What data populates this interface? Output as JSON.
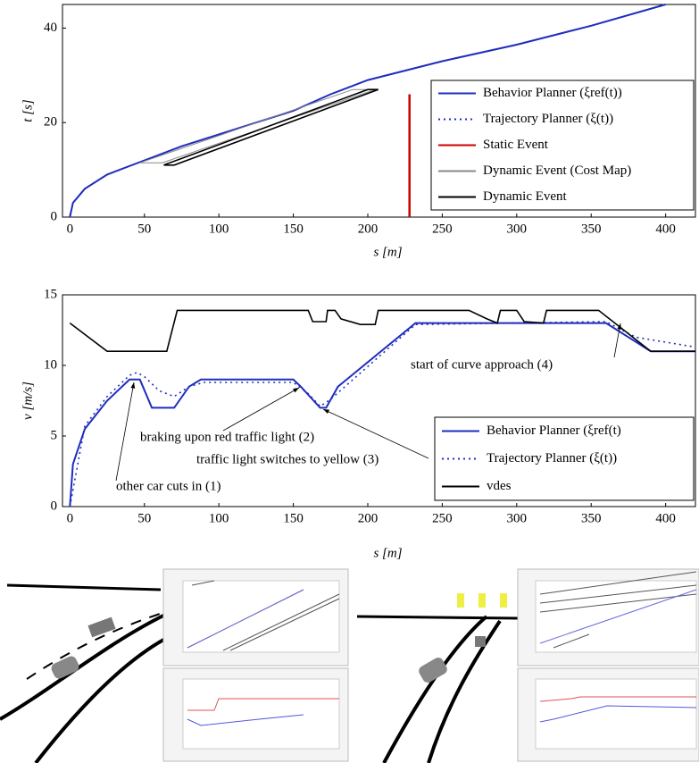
{
  "chart_data": [
    {
      "type": "line",
      "xlabel": "s [m]",
      "ylabel": "t [s]",
      "xlim": [
        -5,
        420
      ],
      "ylim": [
        0,
        45
      ],
      "xticks": [
        0,
        50,
        100,
        150,
        200,
        250,
        300,
        350,
        400
      ],
      "yticks": [
        0,
        20,
        40
      ],
      "legend": "lower right",
      "series": [
        {
          "name": "Behavior Planner (ξref(t))",
          "color": "#1f2dbf",
          "style": "solid",
          "x": [
            0,
            2,
            10,
            25,
            50,
            75,
            100,
            150,
            175,
            200,
            250,
            300,
            350,
            400
          ],
          "y": [
            0,
            3,
            6,
            9,
            12,
            15,
            17.5,
            22.5,
            26,
            29,
            33,
            36.5,
            40.5,
            45
          ]
        },
        {
          "name": "Trajectory Planner (ξ(t))",
          "color": "#1f2dbf",
          "style": "dotted",
          "x": [
            0,
            2,
            10,
            25,
            50,
            75,
            100,
            150,
            175,
            200,
            250,
            300,
            350,
            400
          ],
          "y": [
            0,
            3,
            6,
            9,
            12,
            15,
            17.5,
            22.5,
            26,
            29,
            33,
            36.5,
            40.5,
            45
          ]
        },
        {
          "name": "Static Event",
          "color": "#cc0000",
          "style": "solid",
          "x": [
            228,
            228
          ],
          "y": [
            0,
            26
          ]
        },
        {
          "name": "Dynamic Event (Cost Map)",
          "color": "#888888",
          "style": "solid",
          "x": [
            47,
            62,
            205,
            190,
            47
          ],
          "y": [
            11.5,
            11.5,
            27,
            27,
            11.5
          ]
        },
        {
          "name": "Dynamic Event",
          "color": "#000000",
          "style": "solid",
          "x": [
            63,
            70,
            207,
            200,
            63
          ],
          "y": [
            11,
            11,
            27,
            27,
            11
          ]
        }
      ]
    },
    {
      "type": "line",
      "xlabel": "s [m]",
      "ylabel": "v [m/s]",
      "xlim": [
        -5,
        420
      ],
      "ylim": [
        0,
        15
      ],
      "xticks": [
        0,
        50,
        100,
        150,
        200,
        250,
        300,
        350,
        400
      ],
      "yticks": [
        0,
        5,
        10,
        15
      ],
      "legend": "lower right",
      "annotations": [
        "other car cuts in (1)",
        "braking upon red traffic light (2)",
        "traffic light switches to yellow (3)",
        "start of curve approach (4)"
      ],
      "series": [
        {
          "name": "Behavior Planner (ξref(t)",
          "color": "#1f2dbf",
          "style": "solid",
          "x": [
            0,
            2,
            10,
            25,
            40,
            47,
            55,
            70,
            80,
            88,
            150,
            155,
            168,
            172,
            180,
            232,
            360,
            390,
            420
          ],
          "y": [
            0,
            3,
            5.5,
            7.5,
            9,
            9,
            7,
            7,
            8.5,
            9,
            9,
            8.5,
            7,
            7,
            8.5,
            13,
            13,
            11,
            11
          ]
        },
        {
          "name": "Trajectory Planner (ξ(t))",
          "color": "#1f2dbf",
          "style": "dotted",
          "x": [
            0,
            10,
            25,
            40,
            45,
            50,
            60,
            70,
            80,
            90,
            150,
            160,
            168,
            175,
            232,
            360,
            380,
            420
          ],
          "y": [
            0,
            5.7,
            7.8,
            9.3,
            9.5,
            9.2,
            8.2,
            7.8,
            8.5,
            8.8,
            8.8,
            8,
            7.1,
            7.6,
            12.9,
            13.1,
            12,
            11.3
          ]
        },
        {
          "name": "vdes",
          "color": "#000000",
          "style": "solid",
          "x": [
            0,
            25,
            65,
            72,
            160,
            163,
            172,
            173,
            178,
            182,
            195,
            205,
            207,
            268,
            280,
            287,
            289,
            300,
            305,
            318,
            320,
            355,
            390,
            420
          ],
          "y": [
            13,
            11,
            11,
            13.9,
            13.9,
            13.1,
            13.1,
            13.9,
            13.9,
            13.3,
            12.9,
            12.9,
            13.9,
            13.9,
            13.3,
            13,
            13.9,
            13.9,
            13.1,
            13,
            13.9,
            13.9,
            11,
            11
          ]
        }
      ]
    }
  ]
}
